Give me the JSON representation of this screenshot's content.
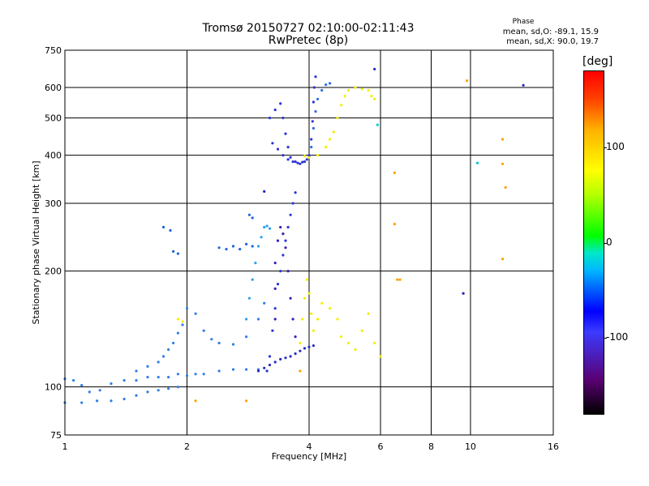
{
  "header": {
    "title_line1": "Tromsø 20150727 02:10:00-02:11:43",
    "title_line2": "RwPretec (8p)"
  },
  "phase_box": {
    "title": "Phase",
    "o_line": "mean, sd,O: -89.1, 15.9",
    "x_line": "mean, sd,X:  90.0, 19.7"
  },
  "colorbar": {
    "unit": "[deg]",
    "ticks": [
      {
        "label": "100",
        "value": 100
      },
      {
        "label": "0",
        "value": 0
      },
      {
        "label": "-100",
        "value": -100
      }
    ],
    "range": [
      -180,
      180
    ],
    "colors": [
      "#000000",
      "#5a0073",
      "#0000ff",
      "#00b8ff",
      "#00ff00",
      "#ffff00",
      "#ff0000"
    ]
  },
  "chart_data": {
    "type": "scatter",
    "xlabel": "Frequency [MHz]",
    "ylabel": "Stationary phase Virtual Height [km]",
    "xscale": "log",
    "yscale": "log",
    "xlim": [
      1,
      16
    ],
    "ylim": [
      75,
      750
    ],
    "x_ticks": [
      {
        "label": "1",
        "value": 1
      },
      {
        "label": "2",
        "value": 2
      },
      {
        "label": "4",
        "value": 4
      },
      {
        "label": "6",
        "value": 6
      },
      {
        "label": "8",
        "value": 8
      },
      {
        "label": "10",
        "value": 10
      },
      {
        "label": "16",
        "value": 16
      }
    ],
    "y_ticks": [
      {
        "label": "75",
        "value": 75
      },
      {
        "label": "100",
        "value": 100
      },
      {
        "label": "200",
        "value": 200
      },
      {
        "label": "300",
        "value": 300
      },
      {
        "label": "400",
        "value": 400
      },
      {
        "label": "500",
        "value": 500
      },
      {
        "label": "600",
        "value": 600
      },
      {
        "label": "750",
        "value": 750
      }
    ],
    "grid": true,
    "series": [
      {
        "color": "#2f7fe6",
        "points": [
          [
            1.0,
            105
          ],
          [
            1.05,
            104
          ],
          [
            1.1,
            101
          ],
          [
            1.15,
            97
          ],
          [
            1.22,
            98
          ],
          [
            1.3,
            102
          ],
          [
            1.4,
            104
          ],
          [
            1.5,
            104
          ],
          [
            1.6,
            106
          ],
          [
            1.7,
            106
          ],
          [
            1.8,
            106
          ],
          [
            1.9,
            108
          ],
          [
            2.0,
            107
          ],
          [
            2.1,
            108
          ],
          [
            2.2,
            108
          ],
          [
            2.4,
            110
          ],
          [
            2.6,
            111
          ],
          [
            2.8,
            111
          ],
          [
            3.0,
            111
          ]
        ]
      },
      {
        "color": "#2f7fe6",
        "points": [
          [
            1.0,
            91
          ],
          [
            1.1,
            91
          ],
          [
            1.2,
            92
          ],
          [
            1.3,
            92
          ],
          [
            1.4,
            93
          ],
          [
            1.5,
            95
          ],
          [
            1.6,
            97
          ],
          [
            1.7,
            98
          ],
          [
            1.8,
            99
          ],
          [
            1.9,
            100
          ]
        ]
      },
      {
        "color": "#2f7fe6",
        "points": [
          [
            1.5,
            110
          ],
          [
            1.6,
            113
          ],
          [
            1.7,
            116
          ],
          [
            1.75,
            120
          ],
          [
            1.8,
            125
          ],
          [
            1.85,
            130
          ],
          [
            1.9,
            138
          ],
          [
            1.95,
            145
          ],
          [
            2.0,
            160
          ],
          [
            2.1,
            155
          ],
          [
            2.2,
            140
          ],
          [
            2.3,
            133
          ],
          [
            2.4,
            130
          ],
          [
            2.6,
            129
          ],
          [
            2.8,
            135
          ],
          [
            3.0,
            150
          ],
          [
            3.1,
            165
          ]
        ]
      },
      {
        "color": "#1e64dc",
        "points": [
          [
            1.75,
            260
          ],
          [
            1.82,
            255
          ],
          [
            1.85,
            225
          ],
          [
            1.9,
            222
          ],
          [
            2.4,
            230
          ],
          [
            2.5,
            228
          ],
          [
            2.6,
            232
          ],
          [
            2.7,
            228
          ],
          [
            2.8,
            235
          ],
          [
            2.9,
            232
          ],
          [
            2.85,
            280
          ],
          [
            2.9,
            275
          ]
        ]
      },
      {
        "color": "#29a0f0",
        "points": [
          [
            2.8,
            150
          ],
          [
            2.85,
            170
          ],
          [
            2.9,
            190
          ],
          [
            2.95,
            210
          ],
          [
            3.0,
            232
          ],
          [
            3.05,
            245
          ],
          [
            3.1,
            260
          ],
          [
            3.15,
            262
          ],
          [
            3.2,
            258
          ]
        ]
      },
      {
        "color": "#2f34d8",
        "points": [
          [
            3.15,
            110
          ],
          [
            3.2,
            120
          ],
          [
            3.25,
            140
          ],
          [
            3.3,
            160
          ],
          [
            3.35,
            185
          ],
          [
            3.4,
            200
          ],
          [
            3.45,
            220
          ],
          [
            3.5,
            240
          ],
          [
            3.55,
            260
          ],
          [
            3.6,
            280
          ],
          [
            3.65,
            300
          ],
          [
            3.7,
            320
          ]
        ]
      },
      {
        "color": "#2b2bc0",
        "points": [
          [
            3.0,
            110
          ],
          [
            3.1,
            112
          ],
          [
            3.2,
            114
          ],
          [
            3.3,
            116
          ],
          [
            3.4,
            118
          ],
          [
            3.5,
            119
          ],
          [
            3.6,
            120
          ],
          [
            3.7,
            122
          ],
          [
            3.8,
            124
          ],
          [
            3.9,
            126
          ],
          [
            4.0,
            127
          ],
          [
            4.1,
            128
          ]
        ]
      },
      {
        "color": "#3a20b0",
        "points": [
          [
            3.3,
            150
          ],
          [
            3.3,
            180
          ],
          [
            3.3,
            210
          ],
          [
            3.35,
            240
          ],
          [
            3.4,
            260
          ],
          [
            3.45,
            250
          ],
          [
            3.5,
            230
          ],
          [
            3.55,
            200
          ],
          [
            3.6,
            170
          ],
          [
            3.65,
            150
          ],
          [
            3.7,
            135
          ]
        ]
      },
      {
        "color": "#2f34d8",
        "points": [
          [
            3.2,
            500
          ],
          [
            3.3,
            525
          ],
          [
            3.4,
            545
          ],
          [
            3.45,
            500
          ],
          [
            3.5,
            455
          ],
          [
            3.55,
            420
          ],
          [
            3.6,
            395
          ],
          [
            3.7,
            385
          ],
          [
            3.8,
            380
          ],
          [
            3.9,
            385
          ],
          [
            4.0,
            400
          ],
          [
            4.05,
            440
          ],
          [
            4.08,
            490
          ],
          [
            4.1,
            550
          ],
          [
            4.12,
            600
          ],
          [
            4.15,
            640
          ]
        ]
      },
      {
        "color": "#2f34d8",
        "points": [
          [
            3.25,
            430
          ],
          [
            3.35,
            415
          ],
          [
            3.45,
            400
          ],
          [
            3.55,
            390
          ],
          [
            3.65,
            385
          ],
          [
            3.75,
            382
          ],
          [
            3.85,
            384
          ],
          [
            3.95,
            390
          ],
          [
            4.0,
            398
          ]
        ]
      },
      {
        "color": "#2f6be3",
        "points": [
          [
            4.05,
            420
          ],
          [
            4.1,
            470
          ],
          [
            4.15,
            520
          ],
          [
            4.2,
            560
          ],
          [
            4.3,
            590
          ],
          [
            4.4,
            610
          ],
          [
            4.5,
            615
          ]
        ]
      },
      {
        "color": "#f2f000",
        "points": [
          [
            3.8,
            130
          ],
          [
            3.85,
            150
          ],
          [
            3.9,
            170
          ],
          [
            3.95,
            190
          ],
          [
            4.0,
            175
          ],
          [
            4.05,
            155
          ],
          [
            4.1,
            140
          ],
          [
            4.2,
            150
          ],
          [
            4.3,
            165
          ],
          [
            4.5,
            160
          ],
          [
            4.7,
            150
          ],
          [
            4.8,
            135
          ],
          [
            5.0,
            130
          ],
          [
            5.2,
            125
          ],
          [
            5.4,
            140
          ],
          [
            5.6,
            155
          ],
          [
            5.8,
            130
          ],
          [
            6.0,
            120
          ]
        ]
      },
      {
        "color": "#f2f000",
        "points": [
          [
            4.4,
            420
          ],
          [
            4.5,
            440
          ],
          [
            4.6,
            460
          ],
          [
            4.7,
            500
          ],
          [
            4.8,
            540
          ],
          [
            4.9,
            570
          ],
          [
            5.0,
            590
          ],
          [
            5.2,
            600
          ],
          [
            5.4,
            595
          ],
          [
            5.6,
            590
          ],
          [
            5.7,
            570
          ],
          [
            5.8,
            560
          ]
        ]
      },
      {
        "color": "#f2f000",
        "points": [
          [
            4.0,
            395
          ],
          [
            3.9,
            398
          ],
          [
            4.2,
            400
          ],
          [
            1.9,
            150
          ],
          [
            1.95,
            148
          ]
        ]
      },
      {
        "color": "#ffa000",
        "points": [
          [
            2.8,
            92
          ],
          [
            6.5,
            360
          ],
          [
            6.5,
            265
          ],
          [
            6.6,
            190
          ],
          [
            6.7,
            190
          ],
          [
            9.8,
            625
          ],
          [
            12.0,
            440
          ],
          [
            12.0,
            380
          ],
          [
            12.2,
            330
          ],
          [
            12.0,
            215
          ],
          [
            2.1,
            92
          ],
          [
            3.8,
            110
          ]
        ]
      },
      {
        "color": "#00c8c8",
        "points": [
          [
            10.4,
            382
          ],
          [
            5.9,
            480
          ]
        ]
      },
      {
        "color": "#2020c8",
        "points": [
          [
            9.6,
            175
          ],
          [
            13.5,
            608
          ],
          [
            5.8,
            670
          ],
          [
            3.1,
            322
          ]
        ]
      }
    ]
  }
}
